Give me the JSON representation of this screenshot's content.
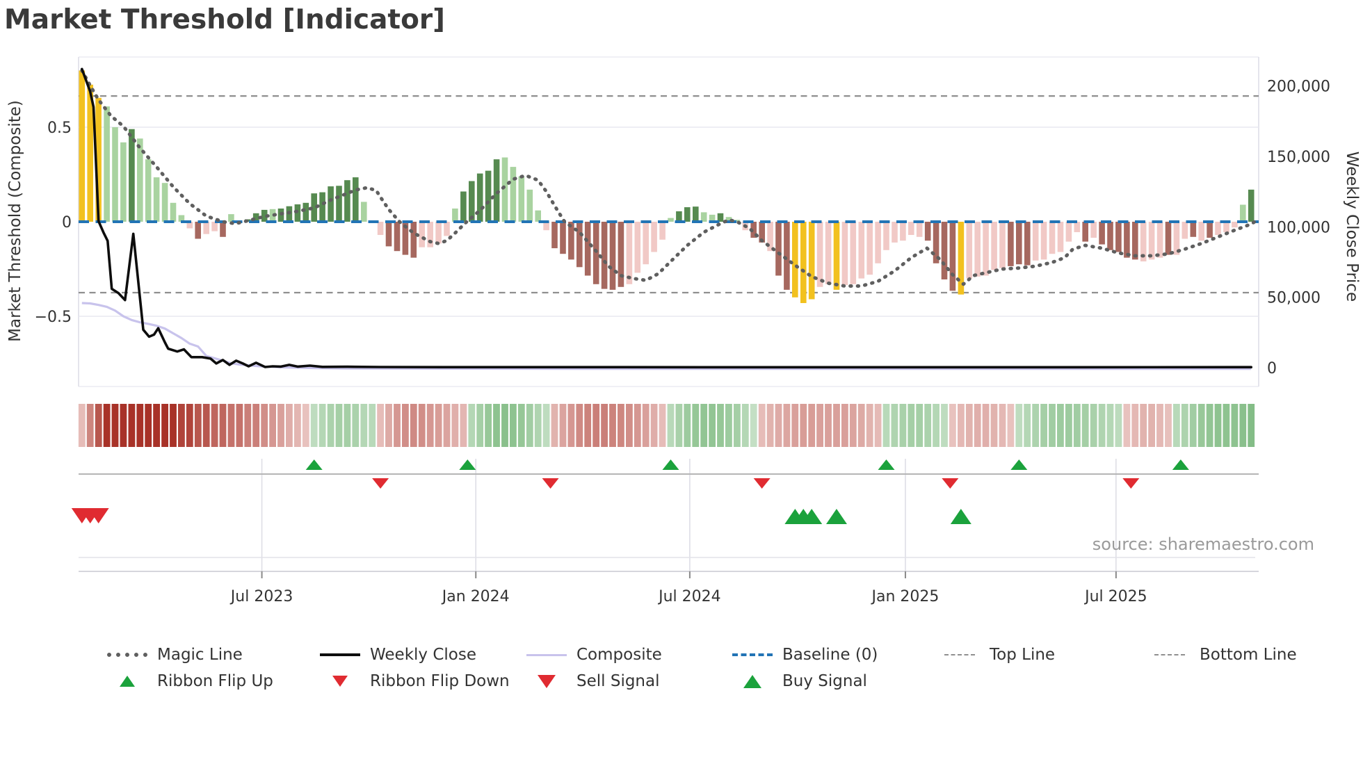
{
  "header": {
    "title": "Market Threshold [Indicator]"
  },
  "source_text": "source: sharemaestro.com",
  "colors": {
    "bar_light_green": "#a9d3a0",
    "bar_dark_green": "#568a50",
    "bar_light_pink": "#f1c9c6",
    "bar_dark_red": "#a6685f",
    "bar_signal_yellow": "#f2c11f",
    "baseline_blue": "#2274b5",
    "magic_line_gray": "#5f5f5f",
    "weekly_close_black": "#0d0d0d",
    "composite_lavender": "#c8c3ec",
    "threshold_gray": "#8f8f8f",
    "signal_green": "#1ba23c",
    "signal_red": "#e02b31",
    "ribbon_red_max": "#a83228",
    "ribbon_red_min": "#faeae8",
    "ribbon_green_max": "#2e8f33",
    "ribbon_green_min": "#eef6ed"
  },
  "axes": {
    "left_title": "Market Threshold (Composite)",
    "right_title": "Weekly Close Price",
    "left_ticks": [
      {
        "v": 0.5,
        "label": "0.5"
      },
      {
        "v": 0,
        "label": "0"
      },
      {
        "v": -0.5,
        "label": "−0.5"
      }
    ],
    "right_ticks": [
      {
        "v": 200000,
        "label": "200,000"
      },
      {
        "v": 150000,
        "label": "150,000"
      },
      {
        "v": 100000,
        "label": "100,000"
      },
      {
        "v": 50000,
        "label": "50,000"
      },
      {
        "v": 0,
        "label": "0"
      }
    ],
    "x_ticks": [
      {
        "week": 21.7,
        "label": "Jul 2023"
      },
      {
        "week": 47.5,
        "label": "Jan 2024"
      },
      {
        "week": 73.3,
        "label": "Jul 2024"
      },
      {
        "week": 99.3,
        "label": "Jan 2025"
      },
      {
        "week": 124.7,
        "label": "Jul 2025"
      }
    ]
  },
  "legend": {
    "items": [
      {
        "label": "Magic Line"
      },
      {
        "label": "Weekly Close"
      },
      {
        "label": "Composite"
      },
      {
        "label": "Baseline (0)"
      },
      {
        "label": "Top Line"
      },
      {
        "label": "Bottom Line"
      },
      {
        "label": "Ribbon Flip Up"
      },
      {
        "label": "Ribbon Flip Down"
      },
      {
        "label": "Sell Signal"
      },
      {
        "label": "Buy Signal"
      }
    ]
  },
  "chart_data": {
    "type": "combo-indicator",
    "title": "Market Threshold [Indicator]",
    "ylabel_left": "Market Threshold (Composite)",
    "ylabel_right": "Weekly Close Price",
    "ylim_left": [
      -0.85,
      0.85
    ],
    "ylim_right": [
      0,
      215000
    ],
    "baseline": 0,
    "top_line": 0.665,
    "bottom_line": -0.375,
    "weeks_count": 142,
    "bars": {
      "type": "bar",
      "values": [
        0.8,
        0.725,
        0.655,
        0.61,
        0.5,
        0.42,
        0.49,
        0.44,
        0.33,
        0.235,
        0.205,
        0.1,
        0.035,
        -0.035,
        -0.09,
        -0.065,
        -0.05,
        -0.08,
        0.04,
        0,
        0.013,
        0.045,
        0.063,
        0.067,
        0.07,
        0.082,
        0.092,
        0.1,
        0.15,
        0.156,
        0.187,
        0.19,
        0.22,
        0.235,
        0.105,
        0.005,
        -0.07,
        -0.13,
        -0.155,
        -0.175,
        -0.19,
        -0.135,
        -0.135,
        -0.115,
        -0.075,
        0.07,
        0.16,
        0.215,
        0.255,
        0.27,
        0.33,
        0.34,
        0.29,
        0.24,
        0.17,
        0.06,
        -0.045,
        -0.14,
        -0.17,
        -0.2,
        -0.24,
        -0.285,
        -0.33,
        -0.355,
        -0.36,
        -0.345,
        -0.33,
        -0.27,
        -0.225,
        -0.16,
        -0.095,
        0.02,
        0.055,
        0.077,
        0.08,
        0.05,
        0.037,
        0.045,
        0.025,
        0.01,
        -0.045,
        -0.085,
        -0.11,
        -0.155,
        -0.285,
        -0.36,
        -0.4,
        -0.43,
        -0.41,
        -0.345,
        -0.33,
        -0.36,
        -0.335,
        -0.33,
        -0.3,
        -0.28,
        -0.22,
        -0.15,
        -0.11,
        -0.1,
        -0.07,
        -0.08,
        -0.1,
        -0.22,
        -0.305,
        -0.365,
        -0.385,
        -0.3,
        -0.29,
        -0.285,
        -0.255,
        -0.245,
        -0.235,
        -0.225,
        -0.23,
        -0.205,
        -0.2,
        -0.17,
        -0.16,
        -0.105,
        -0.055,
        -0.105,
        -0.085,
        -0.12,
        -0.15,
        -0.16,
        -0.19,
        -0.2,
        -0.21,
        -0.2,
        -0.19,
        -0.175,
        -0.175,
        -0.09,
        -0.08,
        -0.1,
        -0.085,
        -0.07,
        -0.055,
        -0.03,
        0.09,
        0.17
      ],
      "colors": [
        "y",
        "y",
        "y",
        "lg",
        "lg",
        "lg",
        "dg",
        "lg",
        "lg",
        "lg",
        "lg",
        "lg",
        "lg",
        "lp",
        "dr",
        "lp",
        "lp",
        "dr",
        "lg",
        "lg",
        "dg",
        "dg",
        "dg",
        "lg",
        "dg",
        "dg",
        "dg",
        "dg",
        "dg",
        "dg",
        "dg",
        "dg",
        "dg",
        "dg",
        "lg",
        "lg",
        "lp",
        "dr",
        "dr",
        "dr",
        "dr",
        "lp",
        "lp",
        "lp",
        "lp",
        "lg",
        "dg",
        "dg",
        "dg",
        "dg",
        "dg",
        "lg",
        "lg",
        "lg",
        "lg",
        "lg",
        "lp",
        "dr",
        "dr",
        "dr",
        "dr",
        "dr",
        "dr",
        "dr",
        "dr",
        "dr",
        "lp",
        "lp",
        "lp",
        "lp",
        "lp",
        "lg",
        "dg",
        "dg",
        "dg",
        "lg",
        "lg",
        "dg",
        "lg",
        "lg",
        "lp",
        "dr",
        "dr",
        "lp",
        "dr",
        "dr",
        "y",
        "y",
        "y",
        "lp",
        "lp",
        "y",
        "lp",
        "lp",
        "lp",
        "lp",
        "lp",
        "lp",
        "lp",
        "lp",
        "lp",
        "lp",
        "dr",
        "dr",
        "dr",
        "dr",
        "y",
        "lp",
        "lp",
        "lp",
        "lp",
        "lp",
        "dr",
        "dr",
        "dr",
        "lp",
        "lp",
        "lp",
        "lp",
        "lp",
        "lp",
        "dr",
        "lp",
        "dr",
        "dr",
        "dr",
        "dr",
        "dr",
        "lp",
        "lp",
        "lp",
        "dr",
        "lp",
        "lp",
        "dr",
        "lp",
        "dr",
        "lp",
        "lp",
        "lp",
        "lg",
        "dg"
      ]
    },
    "magic_line": [
      [
        0,
        0.8
      ],
      [
        1,
        0.72
      ],
      [
        2,
        0.645
      ],
      [
        3.5,
        0.56
      ],
      [
        5,
        0.505
      ],
      [
        7,
        0.39
      ],
      [
        9,
        0.29
      ],
      [
        11,
        0.185
      ],
      [
        13,
        0.096
      ],
      [
        15,
        0.03
      ],
      [
        17,
        0.0
      ],
      [
        18.5,
        -0.01
      ],
      [
        20,
        0.005
      ],
      [
        22,
        0.028
      ],
      [
        24,
        0.042
      ],
      [
        26,
        0.055
      ],
      [
        28,
        0.073
      ],
      [
        30,
        0.115
      ],
      [
        32,
        0.15
      ],
      [
        33,
        0.168
      ],
      [
        34.4,
        0.18
      ],
      [
        35.5,
        0.165
      ],
      [
        36,
        0.13
      ],
      [
        37,
        0.065
      ],
      [
        38.3,
        0
      ],
      [
        40,
        -0.06
      ],
      [
        42,
        -0.105
      ],
      [
        43,
        -0.115
      ],
      [
        44,
        -0.1
      ],
      [
        45,
        -0.06
      ],
      [
        46.4,
        0
      ],
      [
        48,
        0.06
      ],
      [
        50,
        0.15
      ],
      [
        52,
        0.225
      ],
      [
        53.5,
        0.245
      ],
      [
        55,
        0.22
      ],
      [
        56,
        0.16
      ],
      [
        57,
        0.085
      ],
      [
        58.2,
        0
      ],
      [
        60,
        -0.055
      ],
      [
        62,
        -0.155
      ],
      [
        63.5,
        -0.235
      ],
      [
        65,
        -0.285
      ],
      [
        66.5,
        -0.3
      ],
      [
        68,
        -0.31
      ],
      [
        69.5,
        -0.275
      ],
      [
        71,
        -0.21
      ],
      [
        73,
        -0.125
      ],
      [
        75,
        -0.055
      ],
      [
        77,
        -0.01
      ],
      [
        78,
        0.01
      ],
      [
        79,
        0.0
      ],
      [
        80.5,
        -0.035
      ],
      [
        82,
        -0.1
      ],
      [
        84,
        -0.165
      ],
      [
        86,
        -0.23
      ],
      [
        88,
        -0.29
      ],
      [
        90,
        -0.325
      ],
      [
        92,
        -0.34
      ],
      [
        94,
        -0.34
      ],
      [
        96,
        -0.315
      ],
      [
        98,
        -0.26
      ],
      [
        100,
        -0.19
      ],
      [
        101.9,
        -0.14
      ],
      [
        103.5,
        -0.2
      ],
      [
        105,
        -0.28
      ],
      [
        106.3,
        -0.33
      ],
      [
        107.5,
        -0.285
      ],
      [
        109,
        -0.27
      ],
      [
        111,
        -0.25
      ],
      [
        113,
        -0.245
      ],
      [
        115,
        -0.235
      ],
      [
        117,
        -0.215
      ],
      [
        118.5,
        -0.19
      ],
      [
        119.5,
        -0.145
      ],
      [
        121,
        -0.125
      ],
      [
        123,
        -0.14
      ],
      [
        125,
        -0.165
      ],
      [
        127,
        -0.18
      ],
      [
        129,
        -0.18
      ],
      [
        131,
        -0.17
      ],
      [
        133,
        -0.145
      ],
      [
        135,
        -0.115
      ],
      [
        137,
        -0.08
      ],
      [
        139,
        -0.045
      ],
      [
        141,
        -0.012
      ],
      [
        141.6,
        0.005
      ]
    ],
    "weekly_close": [
      [
        0,
        212000
      ],
      [
        1,
        196000
      ],
      [
        1.4,
        185000
      ],
      [
        2,
        104000
      ],
      [
        2.6,
        96000
      ],
      [
        3.1,
        90000
      ],
      [
        3.6,
        56000
      ],
      [
        4.4,
        53000
      ],
      [
        5.2,
        48000
      ],
      [
        6.2,
        95000
      ],
      [
        7.4,
        27000
      ],
      [
        8.1,
        22000
      ],
      [
        8.7,
        23500
      ],
      [
        9.2,
        28000
      ],
      [
        10,
        18000
      ],
      [
        10.4,
        13500
      ],
      [
        11.5,
        11500
      ],
      [
        12.3,
        13000
      ],
      [
        13.2,
        7500
      ],
      [
        14.5,
        7500
      ],
      [
        15.5,
        6500
      ],
      [
        16.2,
        3000
      ],
      [
        17,
        5500
      ],
      [
        17.8,
        2000
      ],
      [
        18.6,
        5000
      ],
      [
        19.4,
        3000
      ],
      [
        20.1,
        1000
      ],
      [
        21,
        3500
      ],
      [
        22.1,
        500
      ],
      [
        23,
        1000
      ],
      [
        24,
        800
      ],
      [
        25,
        2000
      ],
      [
        26,
        800
      ],
      [
        27.5,
        1500
      ],
      [
        29,
        600
      ],
      [
        32,
        700
      ],
      [
        36,
        500
      ],
      [
        45,
        400
      ],
      [
        60,
        400
      ],
      [
        80,
        350
      ],
      [
        100,
        350
      ],
      [
        120,
        350
      ],
      [
        141,
        400
      ]
    ],
    "composite": [
      [
        0,
        -0.43
      ],
      [
        1,
        -0.432
      ],
      [
        2,
        -0.44
      ],
      [
        3,
        -0.45
      ],
      [
        4,
        -0.47
      ],
      [
        5,
        -0.5
      ],
      [
        6,
        -0.52
      ],
      [
        7,
        -0.532
      ],
      [
        8,
        -0.54
      ],
      [
        9,
        -0.55
      ],
      [
        10,
        -0.565
      ],
      [
        11,
        -0.59
      ],
      [
        12,
        -0.615
      ],
      [
        13,
        -0.645
      ],
      [
        14,
        -0.66
      ],
      [
        15,
        -0.71
      ],
      [
        16,
        -0.722
      ],
      [
        17,
        -0.735
      ],
      [
        18,
        -0.748
      ],
      [
        19,
        -0.755
      ],
      [
        20,
        -0.759
      ],
      [
        21,
        -0.763
      ],
      [
        22,
        -0.766
      ],
      [
        24,
        -0.77
      ],
      [
        26,
        -0.772
      ],
      [
        28,
        -0.774
      ],
      [
        32,
        -0.776
      ],
      [
        40,
        -0.777
      ],
      [
        60,
        -0.778
      ],
      [
        100,
        -0.778
      ],
      [
        141,
        -0.778
      ]
    ],
    "ribbon": [
      -0.25,
      -0.55,
      -0.8,
      -1,
      -1,
      -1,
      -1,
      -1,
      -1,
      -1,
      -1,
      -1,
      -0.9,
      -0.9,
      -0.8,
      -0.8,
      -0.72,
      -0.72,
      -0.65,
      -0.65,
      -0.58,
      -0.58,
      -0.5,
      -0.45,
      -0.4,
      -0.33,
      -0.28,
      -0.22,
      0.25,
      0.3,
      0.35,
      0.38,
      0.38,
      0.35,
      0.3,
      0.28,
      -0.25,
      -0.35,
      -0.45,
      -0.5,
      -0.52,
      -0.5,
      -0.45,
      -0.42,
      -0.38,
      -0.32,
      -0.28,
      0.3,
      0.38,
      0.45,
      0.5,
      0.52,
      0.5,
      0.46,
      0.4,
      0.33,
      0.25,
      -0.3,
      -0.38,
      -0.45,
      -0.52,
      -0.56,
      -0.58,
      -0.58,
      -0.56,
      -0.54,
      -0.5,
      -0.45,
      -0.4,
      -0.33,
      -0.25,
      0.28,
      0.36,
      0.42,
      0.46,
      0.48,
      0.48,
      0.46,
      0.42,
      0.38,
      0.3,
      0.22,
      -0.25,
      -0.3,
      -0.34,
      -0.37,
      -0.4,
      -0.42,
      -0.42,
      -0.4,
      -0.4,
      -0.4,
      -0.4,
      -0.38,
      -0.35,
      -0.3,
      -0.26,
      0.28,
      0.33,
      0.36,
      0.38,
      0.38,
      0.35,
      0.3,
      0.25,
      -0.22,
      -0.27,
      -0.3,
      -0.32,
      -0.32,
      -0.3,
      -0.27,
      -0.22,
      0.25,
      0.3,
      0.34,
      0.38,
      0.4,
      0.42,
      0.42,
      0.4,
      0.38,
      0.36,
      0.33,
      0.3,
      0.26,
      -0.22,
      -0.27,
      -0.3,
      -0.3,
      -0.27,
      -0.23,
      0.28,
      0.34,
      0.4,
      0.45,
      0.48,
      0.5,
      0.5,
      0.5,
      0.52,
      0.55
    ],
    "signals": {
      "ribbon_flip_up_weeks": [
        28,
        46.5,
        71,
        97,
        113,
        132.5
      ],
      "ribbon_flip_down_weeks": [
        36,
        56.5,
        82,
        104.7,
        126.5
      ],
      "sell_weeks": [
        0,
        1,
        2
      ],
      "buy_weeks": [
        86,
        87,
        88,
        91,
        106
      ]
    }
  }
}
